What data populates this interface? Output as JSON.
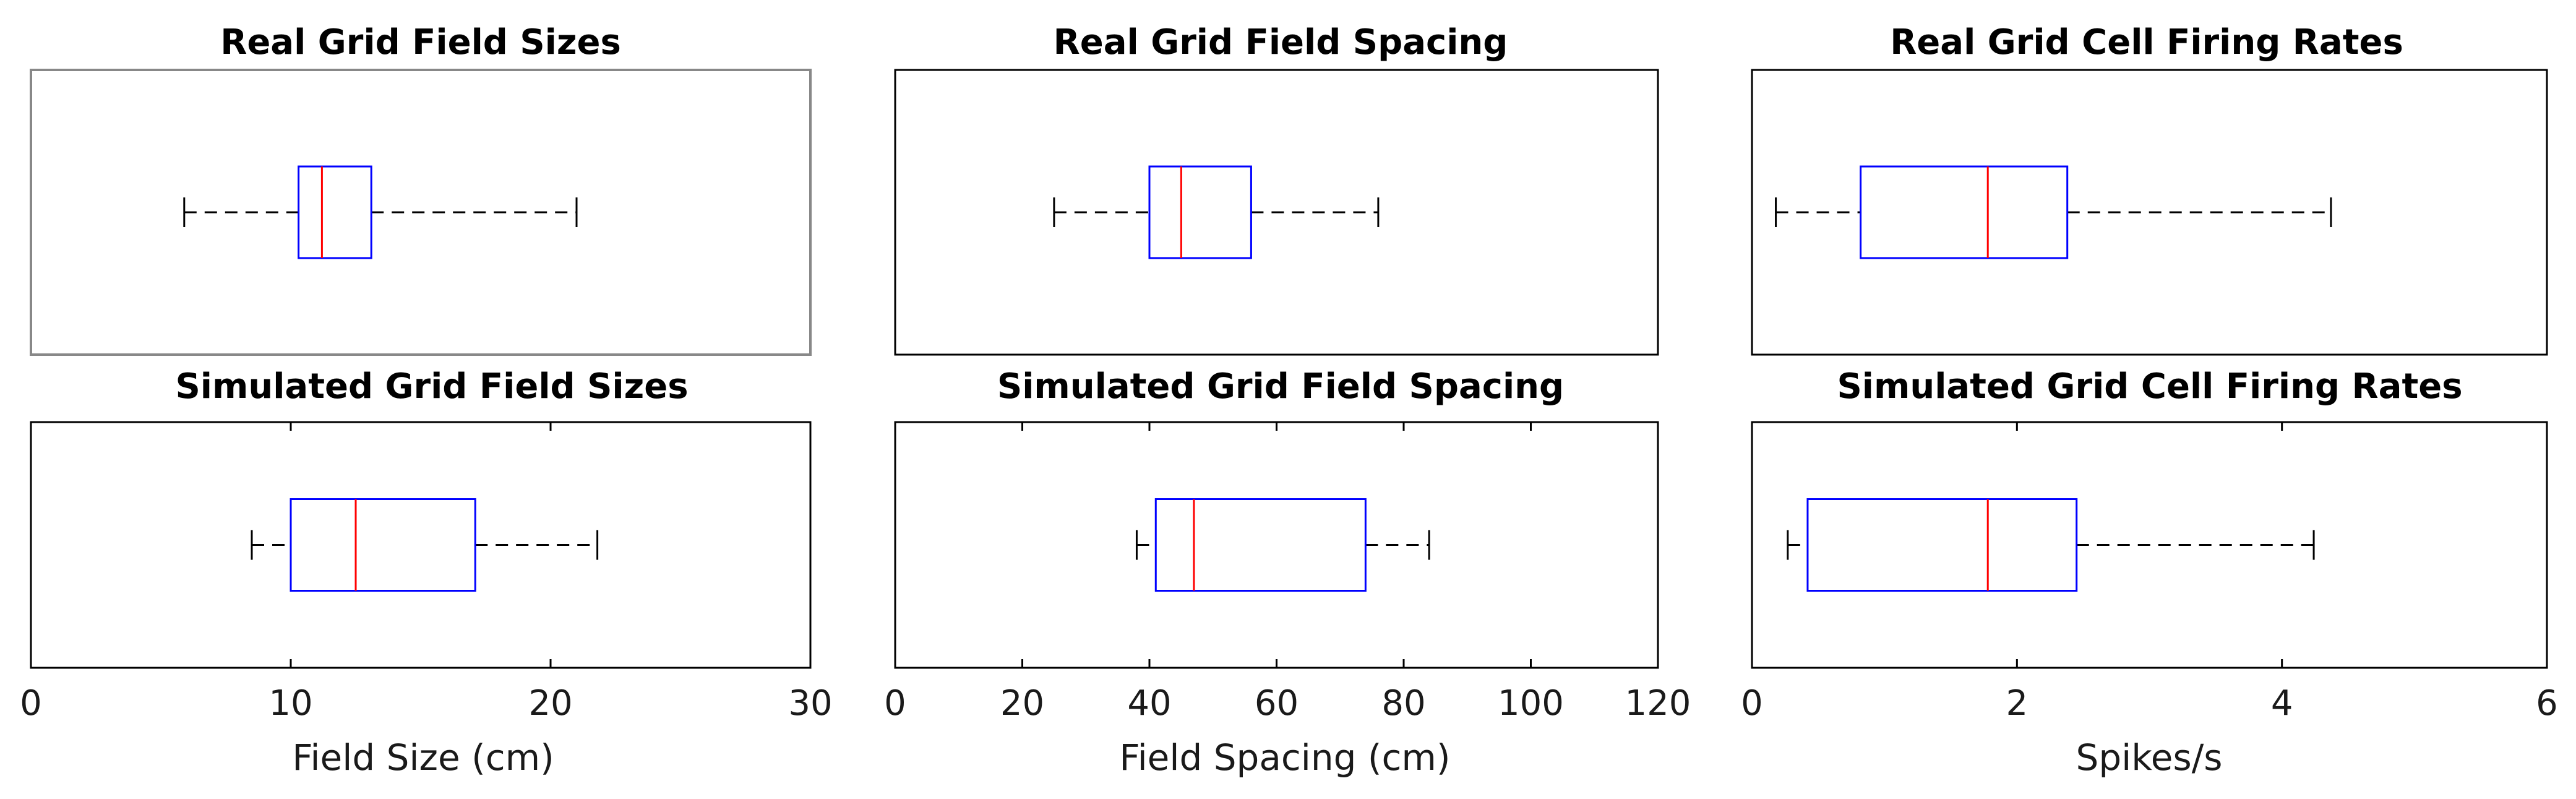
{
  "chart_data": [
    {
      "type": "boxplot",
      "title": "Real Grid Field Sizes",
      "xlabel": "",
      "xlim": [
        0,
        30
      ],
      "xticks": [],
      "box": {
        "whisker_low": 5.9,
        "q1": 10.3,
        "median": 11.2,
        "q3": 13.1,
        "whisker_high": 21.0
      }
    },
    {
      "type": "boxplot",
      "title": "Real Grid Field Spacing",
      "xlabel": "",
      "xlim": [
        0,
        120
      ],
      "xticks": [],
      "box": {
        "whisker_low": 25,
        "q1": 40,
        "median": 45,
        "q3": 56,
        "whisker_high": 76
      }
    },
    {
      "type": "boxplot",
      "title": "Real Grid Cell Firing Rates",
      "xlabel": "",
      "xlim": [
        0,
        6
      ],
      "xticks": [],
      "box": {
        "whisker_low": 0.18,
        "q1": 0.82,
        "median": 1.78,
        "q3": 2.38,
        "whisker_high": 4.37
      }
    },
    {
      "type": "boxplot",
      "title": "Simulated Grid Field Sizes",
      "xlabel": "Field Size (cm)",
      "xlim": [
        0,
        30
      ],
      "xticks": [
        "0",
        "10",
        "20",
        "30"
      ],
      "box": {
        "whisker_low": 8.5,
        "q1": 10.0,
        "median": 12.5,
        "q3": 17.1,
        "whisker_high": 21.8
      }
    },
    {
      "type": "boxplot",
      "title": "Simulated Grid Field Spacing",
      "xlabel": "Field Spacing (cm)",
      "xlim": [
        0,
        120
      ],
      "xticks": [
        "0",
        "20",
        "40",
        "60",
        "80",
        "100",
        "120"
      ],
      "box": {
        "whisker_low": 38,
        "q1": 41,
        "median": 47,
        "q3": 74,
        "whisker_high": 84
      }
    },
    {
      "type": "boxplot",
      "title": "Simulated Grid Cell Firing Rates",
      "xlabel": "Spikes/s",
      "xlim": [
        0,
        6
      ],
      "xticks": [
        "0",
        "2",
        "4",
        "6"
      ],
      "box": {
        "whisker_low": 0.27,
        "q1": 0.42,
        "median": 1.78,
        "q3": 2.45,
        "whisker_high": 4.24
      }
    }
  ],
  "colors": {
    "box": "#0000ff",
    "median": "#ff0000",
    "whisker": "#000000",
    "axes": "#000000"
  }
}
